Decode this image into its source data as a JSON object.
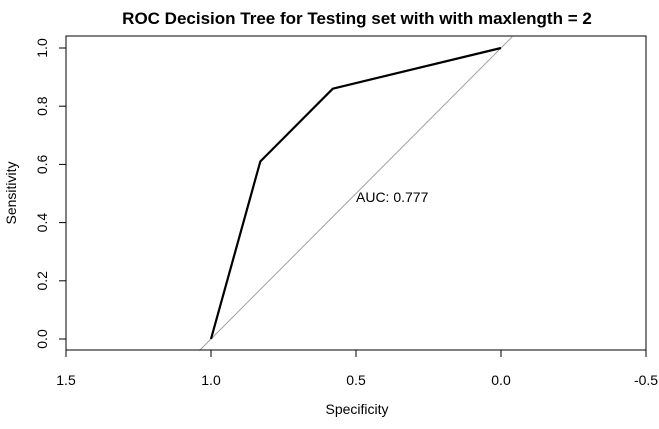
{
  "chart_data": {
    "type": "line",
    "title": "ROC Decision Tree for Testing set with with maxlength = 2",
    "xlabel": "Specificity",
    "ylabel": "Sensitivity",
    "xlim": [
      1.5,
      -0.5
    ],
    "ylim": [
      0.0,
      1.0
    ],
    "x_reversed": true,
    "x_ticks": [
      1.5,
      1.0,
      0.5,
      0.0,
      -0.5
    ],
    "x_tick_labels": [
      "1.5",
      "1.0",
      "0.5",
      "0.0",
      "-0.5"
    ],
    "y_ticks": [
      0.0,
      0.2,
      0.4,
      0.6,
      0.8,
      1.0
    ],
    "y_tick_labels": [
      "0.0",
      "0.2",
      "0.4",
      "0.6",
      "0.8",
      "1.0"
    ],
    "grid": false,
    "series": [
      {
        "specificity": [
          1.0,
          0.83,
          0.58,
          0.0
        ],
        "sensitivity": [
          0.0,
          0.61,
          0.86,
          1.0
        ],
        "color": "#000000"
      }
    ],
    "reference_line": {
      "specificity": [
        1.04,
        -0.04
      ],
      "sensitivity": [
        -0.04,
        1.04
      ],
      "color": "#a0a0a0"
    },
    "annotation": {
      "text": "AUC: 0.777",
      "specificity": 0.5,
      "sensitivity": 0.47
    }
  }
}
